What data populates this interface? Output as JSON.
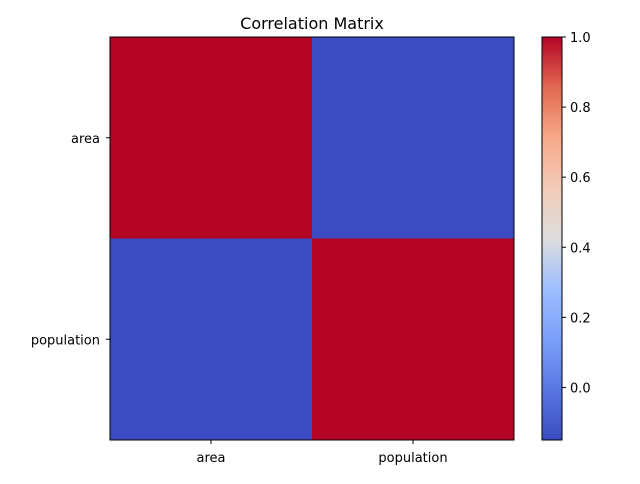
{
  "chart_data": {
    "type": "heatmap",
    "title": "Correlation Matrix",
    "x_categories": [
      "area",
      "population"
    ],
    "y_categories": [
      "area",
      "population"
    ],
    "values": [
      [
        1.0,
        -0.15
      ],
      [
        -0.15,
        1.0
      ]
    ],
    "colormap": "coolwarm",
    "colorbar": {
      "vmin": -0.15,
      "vmax": 1.0,
      "ticks": [
        0.0,
        0.2,
        0.4,
        0.6,
        0.8,
        1.0
      ],
      "tick_labels": [
        "0.0",
        "0.2",
        "0.4",
        "0.6",
        "0.8",
        "1.0"
      ],
      "placement": "right"
    },
    "grid": false
  }
}
